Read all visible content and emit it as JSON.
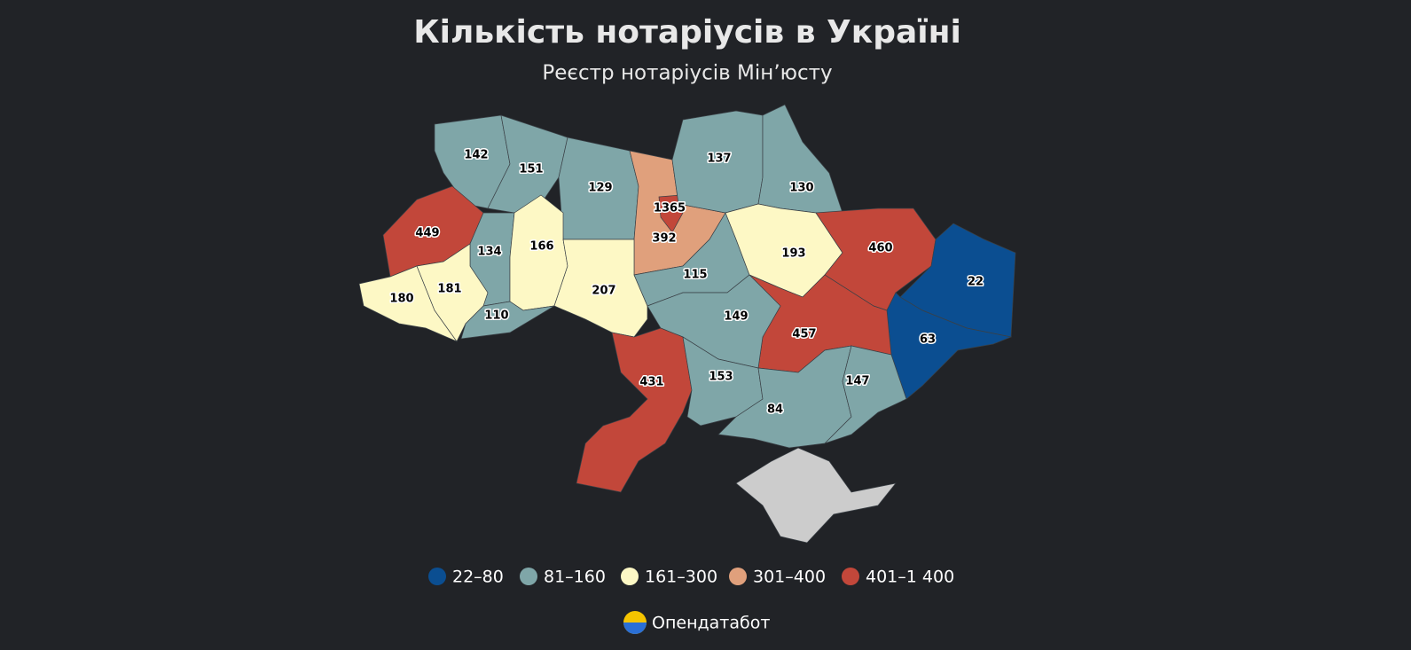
{
  "title": "Кількість нотаріусів в Україні",
  "subtitle": "Реєстр нотаріусів Мін’юсту",
  "regions": [
    {
      "value": 142
    },
    {
      "value": 151
    },
    {
      "value": 129
    },
    {
      "value": 392
    },
    {
      "value": 1365
    },
    {
      "value": 137
    },
    {
      "value": 130
    },
    {
      "value": 449
    },
    {
      "value": 134
    },
    {
      "value": 166
    },
    {
      "value": 180
    },
    {
      "value": 181
    },
    {
      "value": 110
    },
    {
      "value": 207
    },
    {
      "value": 115
    },
    {
      "value": 193
    },
    {
      "value": 460
    },
    {
      "value": 22
    },
    {
      "value": 63
    },
    {
      "value": 457
    },
    {
      "value": 149
    },
    {
      "value": 431
    },
    {
      "value": 153
    },
    {
      "value": 84
    },
    {
      "value": 147
    }
  ],
  "legend": [
    {
      "label": "22–80",
      "min": 22,
      "max": 80,
      "color": "#0b4e91"
    },
    {
      "label": "81–160",
      "min": 81,
      "max": 160,
      "color": "#7fa6a8"
    },
    {
      "label": "161–300",
      "min": 161,
      "max": 300,
      "color": "#fdf8c5"
    },
    {
      "label": "301–400",
      "min": 301,
      "max": 400,
      "color": "#e0a07c"
    },
    {
      "label": "401–1 400",
      "min": 401,
      "max": 1400,
      "color": "#c2473a"
    }
  ],
  "footer": "Опендатабот"
}
